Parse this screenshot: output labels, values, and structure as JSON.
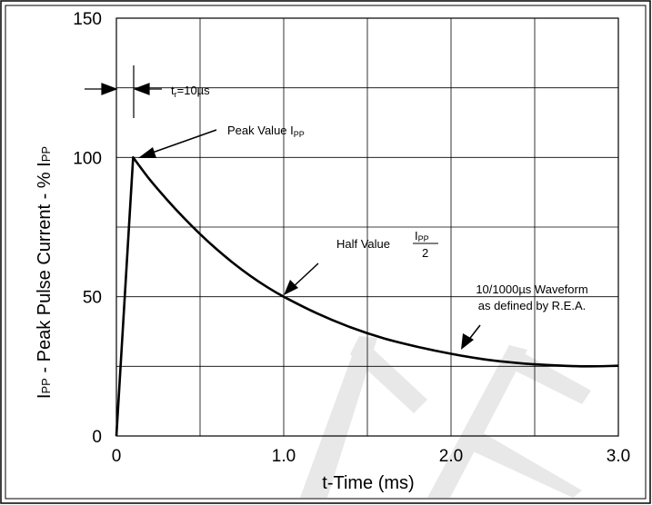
{
  "chart_data": {
    "type": "line",
    "title": "",
    "xlabel": "t-Time (ms)",
    "ylabel": {
      "main": "I",
      "main_sub": "PP",
      "rest": " - Peak Pulse Current - % I",
      "rest_sub": "PP"
    },
    "xlim": [
      0,
      3.0
    ],
    "ylim": [
      0,
      150
    ],
    "x_ticks": [
      0,
      0.5,
      1.0,
      1.5,
      2.0,
      2.5,
      3.0
    ],
    "y_ticks": [
      0,
      25,
      50,
      75,
      100,
      125,
      150
    ],
    "x_tick_labels": [
      {
        "value": 0,
        "text": "0"
      },
      {
        "value": 1.0,
        "text": "1.0"
      },
      {
        "value": 2.0,
        "text": "2.0"
      },
      {
        "value": 3.0,
        "text": "3.0"
      }
    ],
    "y_tick_labels": [
      {
        "value": 0,
        "text": "0"
      },
      {
        "value": 50,
        "text": "50"
      },
      {
        "value": 100,
        "text": "100"
      },
      {
        "value": 150,
        "text": "150"
      }
    ],
    "grid": true,
    "series": [
      {
        "x": [
          0,
          0.1,
          0.2,
          0.3,
          0.4,
          0.5,
          0.6,
          0.7,
          0.8,
          0.9,
          1.0,
          1.2,
          1.4,
          1.6,
          1.8,
          2.0,
          2.2,
          2.4,
          2.6,
          2.8,
          3.0
        ],
        "y": [
          0,
          100,
          92,
          85,
          78.5,
          72.5,
          67,
          62,
          57.5,
          53.5,
          50,
          44,
          39,
          35,
          32,
          29.5,
          27.5,
          26.2,
          25.4,
          25,
          25.2
        ]
      }
    ],
    "annotations": {
      "rise_time": {
        "main": "t",
        "sub": "r",
        "rest": "=10µs"
      },
      "peak_value": {
        "main": "Peak Value I",
        "sub": "PP"
      },
      "half_value": {
        "main": "Half Value ",
        "numerator_main": "I",
        "numerator_sub": "PP",
        "denominator": "2"
      },
      "waveform": {
        "line1": "10/1000µs Waveform",
        "line2": "as defined by R.E.A."
      }
    }
  }
}
